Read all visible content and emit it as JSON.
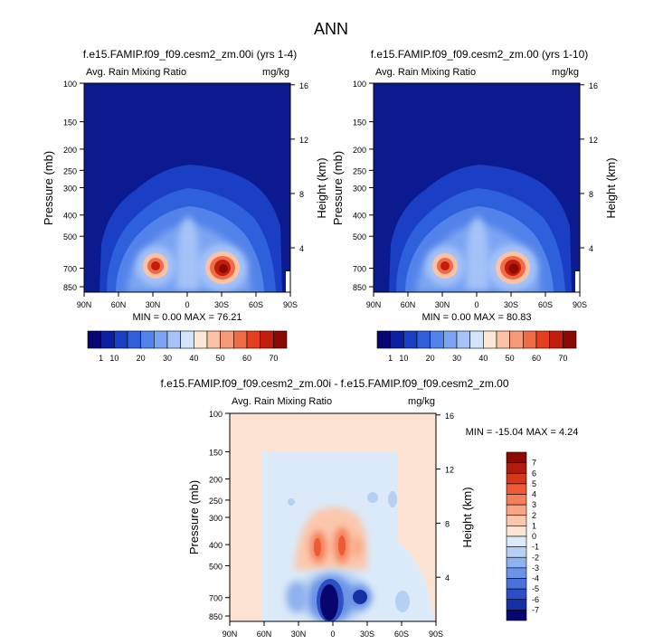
{
  "figure": {
    "title": "ANN",
    "colors": {
      "background": "#ffffff",
      "field_bg_panel": "#0b1a8e",
      "diff_bg": "#fbe2d2"
    }
  },
  "chart_data": [
    {
      "type": "heatmap",
      "title": "f.e15.FAMIP.f09_f09.cesm2_zm.00i (yrs 1-4)",
      "subtitle_left": "Avg. Rain Mixing Ratio",
      "units": "mg/kg",
      "ylabel": "Pressure (mb)",
      "ylabel_right": "Height (km)",
      "x_ticks": [
        "90N",
        "60N",
        "30N",
        "0",
        "30S",
        "60S",
        "90S"
      ],
      "x_range": [
        90,
        -90
      ],
      "y_ticks": [
        "100",
        "150",
        "200",
        "250",
        "300",
        "400",
        "500",
        "700",
        "850"
      ],
      "y_tick_values": [
        100,
        150,
        200,
        250,
        300,
        400,
        500,
        700,
        850
      ],
      "y_range_mb": [
        100,
        900
      ],
      "right_ticks": [
        "16",
        "12",
        "8",
        "4"
      ],
      "right_tick_values_km": [
        16,
        12,
        8,
        4
      ],
      "stats": "MIN =  0.00   MAX =  76.21",
      "min": 0.0,
      "max": 76.21,
      "features": [
        {
          "lat": 30,
          "p": 700,
          "value": 68
        },
        {
          "lat": -28,
          "p": 700,
          "value": 76
        },
        {
          "lat": 0,
          "p": 400,
          "value": 32
        },
        {
          "lat": 0,
          "p": 650,
          "value": 42
        }
      ]
    },
    {
      "type": "heatmap",
      "title": "f.e15.FAMIP.f09_f09.cesm2_zm.00 (yrs 1-10)",
      "subtitle_left": "Avg. Rain Mixing Ratio",
      "units": "mg/kg",
      "ylabel": "Pressure (mb)",
      "ylabel_right": "Height (km)",
      "x_ticks": [
        "90N",
        "60N",
        "30N",
        "0",
        "30S",
        "60S",
        "90S"
      ],
      "x_range": [
        90,
        -90
      ],
      "y_ticks": [
        "100",
        "150",
        "200",
        "250",
        "300",
        "400",
        "500",
        "700",
        "850"
      ],
      "y_tick_values": [
        100,
        150,
        200,
        250,
        300,
        400,
        500,
        700,
        850
      ],
      "y_range_mb": [
        100,
        900
      ],
      "right_ticks": [
        "16",
        "12",
        "8",
        "4"
      ],
      "right_tick_values_km": [
        16,
        12,
        8,
        4
      ],
      "stats": "MIN =  0.00   MAX =  80.83",
      "min": 0.0,
      "max": 80.83,
      "features": [
        {
          "lat": 30,
          "p": 700,
          "value": 66
        },
        {
          "lat": -28,
          "p": 700,
          "value": 80
        },
        {
          "lat": 0,
          "p": 400,
          "value": 32
        },
        {
          "lat": 0,
          "p": 650,
          "value": 40
        }
      ]
    },
    {
      "type": "heatmap",
      "title": "f.e15.FAMIP.f09_f09.cesm2_zm.00i - f.e15.FAMIP.f09_f09.cesm2_zm.00",
      "subtitle_left": "Avg. Rain Mixing Ratio",
      "units": "mg/kg",
      "ylabel": "Pressure (mb)",
      "ylabel_right": "Height (km)",
      "x_ticks": [
        "90N",
        "60N",
        "30N",
        "0",
        "30S",
        "60S",
        "90S"
      ],
      "x_range": [
        90,
        -90
      ],
      "y_ticks": [
        "100",
        "150",
        "200",
        "250",
        "300",
        "400",
        "500",
        "700",
        "850"
      ],
      "y_tick_values": [
        100,
        150,
        200,
        250,
        300,
        400,
        500,
        700,
        850
      ],
      "y_range_mb": [
        100,
        900
      ],
      "right_ticks": [
        "16",
        "12",
        "8",
        "4"
      ],
      "right_tick_values_km": [
        16,
        12,
        8,
        4
      ],
      "stats": "MIN = -15.04   MAX =   4.24",
      "min": -15.04,
      "max": 4.24,
      "features": [
        {
          "lat": 3,
          "p": 750,
          "value": -15
        },
        {
          "lat": -28,
          "p": 720,
          "value": -6
        },
        {
          "lat": 20,
          "p": 700,
          "value": -4
        },
        {
          "lat": 0,
          "p": 420,
          "value": 4
        },
        {
          "lat": 10,
          "p": 400,
          "value": 3
        }
      ]
    }
  ],
  "colorbars": {
    "field": {
      "labels": [
        "1",
        "10",
        "20",
        "30",
        "40",
        "50",
        "60",
        "70"
      ],
      "colors": [
        "#06066e",
        "#0c1fa0",
        "#1b3fc4",
        "#2f60dc",
        "#5283ea",
        "#7ba4f2",
        "#a5c3f8",
        "#d3e3fb",
        "#fde6d6",
        "#fbc3a6",
        "#f89a77",
        "#f26b47",
        "#e4401f",
        "#c11e0c",
        "#8b0b04"
      ]
    },
    "diff": {
      "labels": [
        "7",
        "6",
        "5",
        "4",
        "3",
        "2",
        "1",
        "0",
        "-1",
        "-2",
        "-3",
        "-4",
        "-5",
        "-6",
        "-7"
      ],
      "colors": [
        "#8b0b04",
        "#b01c0c",
        "#d8361a",
        "#ef5a34",
        "#f57f5a",
        "#f9a584",
        "#fbc7ac",
        "#fde4d3",
        "#dbeaf8",
        "#b6d0f4",
        "#8fb2ee",
        "#6b93e6",
        "#4a72da",
        "#2d4fc5",
        "#1730a4",
        "#06066e"
      ]
    }
  }
}
